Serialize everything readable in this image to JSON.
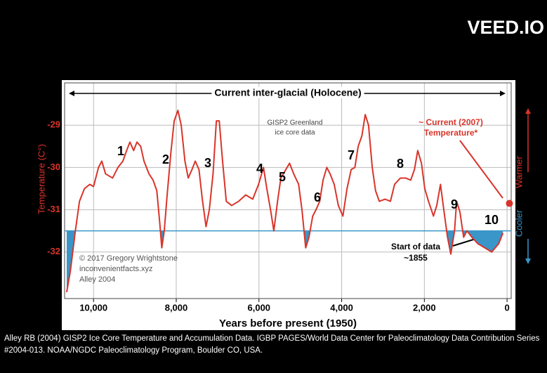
{
  "watermark": "VEED.IO",
  "caption": "Alley RB (2004) GISP2 Ice Core Temperature and Accumulation Data. IGBP PAGES/World Data Center for Paleoclimatology Data Contribution Series #2004-013. NOAA/NGDC Paleoclimatology Program, Boulder CO, USA.",
  "chart_data": {
    "type": "line",
    "xlabel": "Years before present (1950)",
    "ylabel": "Temperature (C°)",
    "warmer_label": "Warmer",
    "cooler_label": "Cooler",
    "annotations": [
      "Current inter-glacial (Holocene)",
      "GISP2 Greenland",
      "ice core data",
      "~ Current (2007)",
      "Temperature*",
      "Start of data",
      "~1855",
      "© 2017 Gregory Wrightstone",
      "inconvenientfacts.xyz",
      "Alley 2004"
    ],
    "peak_labels": [
      "1",
      "2",
      "3",
      "4",
      "5",
      "6",
      "7",
      "8",
      "9",
      "10"
    ],
    "color": "#d9342a",
    "shade_below": -31.5,
    "shade_color": "#3a96c8",
    "xlim": [
      10700,
      -100
    ],
    "xticks": [
      {
        "value": 10000,
        "label": "10,000"
      },
      {
        "value": 8000,
        "label": "8,000"
      },
      {
        "value": 6000,
        "label": "6,000"
      },
      {
        "value": 4000,
        "label": "4,000"
      },
      {
        "value": 2000,
        "label": "2,000"
      },
      0
    ],
    "ylim": [
      -33.1,
      -28
    ],
    "yticks": [
      -29,
      -30,
      -31,
      -32
    ],
    "grid": true,
    "current_point": {
      "x": -57,
      "y": -30.85
    },
    "x": [
      10650,
      10560,
      10440,
      10340,
      10220,
      10090,
      10000,
      9880,
      9800,
      9710,
      9540,
      9410,
      9290,
      9200,
      9120,
      9030,
      8950,
      8860,
      8780,
      8660,
      8560,
      8470,
      8400,
      8350,
      8290,
      8220,
      8130,
      8050,
      7960,
      7880,
      7790,
      7710,
      7620,
      7540,
      7450,
      7370,
      7280,
      7200,
      7110,
      7030,
      6960,
      6880,
      6790,
      6660,
      6490,
      6320,
      6150,
      6010,
      5890,
      5810,
      5720,
      5640,
      5550,
      5470,
      5350,
      5260,
      5160,
      5040,
      4960,
      4870,
      4790,
      4700,
      4620,
      4530,
      4450,
      4360,
      4280,
      4180,
      4080,
      3970,
      3870,
      3770,
      3680,
      3600,
      3510,
      3430,
      3350,
      3260,
      3180,
      3090,
      2950,
      2820,
      2720,
      2580,
      2450,
      2330,
      2240,
      2160,
      2070,
      1990,
      1900,
      1780,
      1700,
      1610,
      1530,
      1440,
      1360,
      1270,
      1220,
      1140,
      1050,
      970,
      850,
      710,
      540,
      370,
      200,
      100
    ],
    "values": [
      -32.95,
      -32.45,
      -31.5,
      -30.8,
      -30.5,
      -30.4,
      -30.45,
      -30.0,
      -29.85,
      -30.15,
      -30.25,
      -30.0,
      -29.85,
      -29.6,
      -29.4,
      -29.6,
      -29.4,
      -29.5,
      -29.85,
      -30.15,
      -30.3,
      -30.55,
      -31.3,
      -31.9,
      -31.5,
      -30.65,
      -29.65,
      -28.9,
      -28.65,
      -29.0,
      -29.85,
      -30.25,
      -30.05,
      -29.85,
      -30.05,
      -30.75,
      -31.4,
      -31.0,
      -30.15,
      -28.9,
      -28.9,
      -29.85,
      -30.8,
      -30.9,
      -30.8,
      -30.65,
      -30.75,
      -30.4,
      -30.0,
      -30.5,
      -31.0,
      -31.5,
      -30.8,
      -30.25,
      -30.05,
      -29.9,
      -30.15,
      -30.4,
      -31.0,
      -31.9,
      -31.65,
      -31.15,
      -31.0,
      -30.8,
      -30.3,
      -30.0,
      -30.15,
      -30.4,
      -30.9,
      -31.15,
      -30.5,
      -30.05,
      -30.0,
      -29.5,
      -29.25,
      -28.75,
      -29.0,
      -30.0,
      -30.55,
      -30.8,
      -30.75,
      -30.8,
      -30.4,
      -30.25,
      -30.25,
      -30.3,
      -30.05,
      -29.6,
      -29.9,
      -30.5,
      -30.8,
      -31.15,
      -30.9,
      -30.4,
      -31.0,
      -31.65,
      -32.05,
      -31.5,
      -30.8,
      -31.05,
      -31.65,
      -31.5,
      -31.65,
      -31.8,
      -31.9,
      -32.0,
      -31.8,
      -31.55
    ]
  }
}
